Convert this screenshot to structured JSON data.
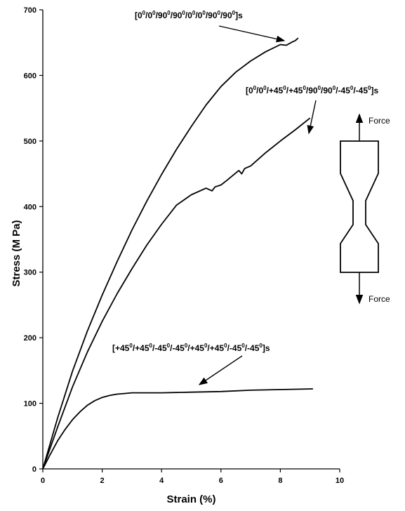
{
  "chart_data": {
    "type": "line",
    "title": "",
    "xlabel": "Strain (%)",
    "ylabel": "Stress (M Pa)",
    "xlim": [
      0,
      10
    ],
    "ylim": [
      0,
      700
    ],
    "x_ticks": [
      0,
      2,
      4,
      6,
      8,
      10
    ],
    "y_ticks": [
      0,
      100,
      200,
      300,
      400,
      500,
      600,
      700
    ],
    "grid": false,
    "legend": "none",
    "series": [
      {
        "annotation": "[0⁰/0⁰/90⁰/90⁰/0⁰/0⁰/90⁰/90⁰]s",
        "x": [
          0,
          0.5,
          1,
          1.5,
          2,
          2.5,
          3,
          3.5,
          4,
          4.5,
          5,
          5.5,
          6,
          6.5,
          7,
          7.5,
          8,
          8.2,
          8.4,
          8.5,
          8.6
        ],
        "y": [
          0,
          78,
          149,
          210,
          265,
          316,
          364,
          408,
          449,
          487,
          522,
          555,
          583,
          605,
          622,
          636,
          647,
          646,
          651,
          653,
          657
        ]
      },
      {
        "annotation": "[0⁰/0⁰/+45⁰/+45⁰/90⁰/90⁰/-45⁰/-45⁰]s",
        "x": [
          0,
          0.5,
          1,
          1.5,
          2,
          2.5,
          3,
          3.5,
          4,
          4.5,
          5,
          5.5,
          5.7,
          5.8,
          6.0,
          6.2,
          6.6,
          6.7,
          6.8,
          7,
          7.5,
          8,
          8.5,
          9.0
        ],
        "y": [
          0,
          64,
          125,
          178,
          225,
          267,
          305,
          341,
          373,
          402,
          418,
          428,
          424,
          430,
          433,
          440,
          455,
          450,
          458,
          462,
          482,
          500,
          517,
          535
        ]
      },
      {
        "annotation": "[+45⁰/+45⁰/-45⁰/-45⁰/+45⁰/+45⁰/-45⁰/-45⁰]s",
        "x": [
          0,
          0.25,
          0.5,
          0.75,
          1,
          1.25,
          1.5,
          1.75,
          2,
          2.25,
          2.5,
          2.75,
          3,
          3.5,
          4,
          5,
          6,
          7,
          8,
          9.1
        ],
        "y": [
          0,
          22,
          43,
          60,
          75,
          87,
          97,
          104,
          109,
          112,
          114,
          115,
          116,
          116,
          116,
          117,
          118,
          120,
          121,
          122
        ]
      }
    ],
    "annotations": {
      "a1": {
        "base": "[0",
        "segments": [
          "0",
          "/0",
          "0",
          "/90",
          "0",
          "/90",
          "0",
          "/0",
          "0",
          "/0",
          "0",
          "/90",
          "0",
          "/90",
          "0",
          "]s"
        ]
      },
      "a2": {
        "base": "[0",
        "segments": [
          "0",
          "/0",
          "0",
          "/+45",
          "0",
          "/+45",
          "0",
          "/90",
          "0",
          "/90",
          "0",
          "/-45",
          "0",
          "/-45",
          "0",
          "]s"
        ]
      },
      "a3": {
        "base": "[+45",
        "segments": [
          "0",
          "/+45",
          "0",
          "/-45",
          "0",
          "/-45",
          "0",
          "/+45",
          "0",
          "/+45",
          "0",
          "/-45",
          "0",
          "/-45",
          "0",
          "]s"
        ]
      }
    },
    "inset": {
      "top_label": "Force",
      "bottom_label": "Force"
    }
  }
}
